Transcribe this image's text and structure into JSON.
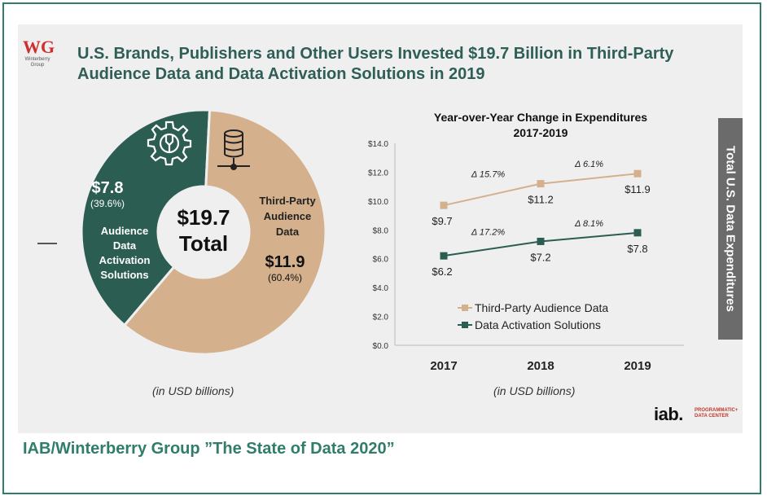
{
  "header": {
    "title": "U.S. Brands, Publishers and Other Users Invested $19.7 Billion in Third-Party Audience Data and Data Activation Solutions in 2019",
    "logo_mark": "WG",
    "logo_name": "Winterberry Group"
  },
  "donut": {
    "center_value": "$19.7",
    "center_label": "Total",
    "note": "(in USD billions)",
    "segments": [
      {
        "value_label": "$7.8",
        "pct_label": "(39.6%)",
        "name_lines": [
          "Audience",
          "Data",
          "Activation",
          "Solutions"
        ],
        "value": 7.8,
        "pct": 39.6,
        "color": "#2b5d52",
        "icon": "gear-wrench-icon"
      },
      {
        "value_label": "$11.9",
        "pct_label": "(60.4%)",
        "name_lines": [
          "Third-Party",
          "Audience",
          "Data"
        ],
        "value": 11.9,
        "pct": 60.4,
        "color": "#d4b08c",
        "icon": "database-icon"
      }
    ]
  },
  "chart_data": {
    "type": "line",
    "title": "Year-over-Year Change in Expenditures",
    "subtitle": "2017-2019",
    "categories": [
      "2017",
      "2018",
      "2019"
    ],
    "ylim": [
      0,
      14
    ],
    "yticks": [
      "$0.0",
      "$2.0",
      "$4.0",
      "$6.0",
      "$8.0",
      "$10.0",
      "$12.0",
      "$14.0"
    ],
    "grid": false,
    "legend": "center",
    "note": "(in USD billions)",
    "series": [
      {
        "name": "Third-Party Audience Data",
        "values": [
          9.7,
          11.2,
          11.9
        ],
        "labels": [
          "$9.7",
          "$11.2",
          "$11.9"
        ],
        "changes": [
          "Δ 15.7%",
          "Δ 6.1%"
        ],
        "color": "#d4b08c",
        "marker": "square"
      },
      {
        "name": "Data Activation Solutions",
        "values": [
          6.2,
          7.2,
          7.8
        ],
        "labels": [
          "$6.2",
          "$7.2",
          "$7.8"
        ],
        "changes": [
          "Δ 17.2%",
          "Δ 8.1%"
        ],
        "color": "#2b5d52",
        "marker": "square"
      }
    ]
  },
  "sidebar_label": "Total U.S. Data Expenditures",
  "iab": {
    "mark": "iab.",
    "sub_line1": "PROGRAMMATIC+",
    "sub_line2": "DATA CENTER"
  },
  "footer": "IAB/Winterberry Group ”The State of Data 2020”"
}
